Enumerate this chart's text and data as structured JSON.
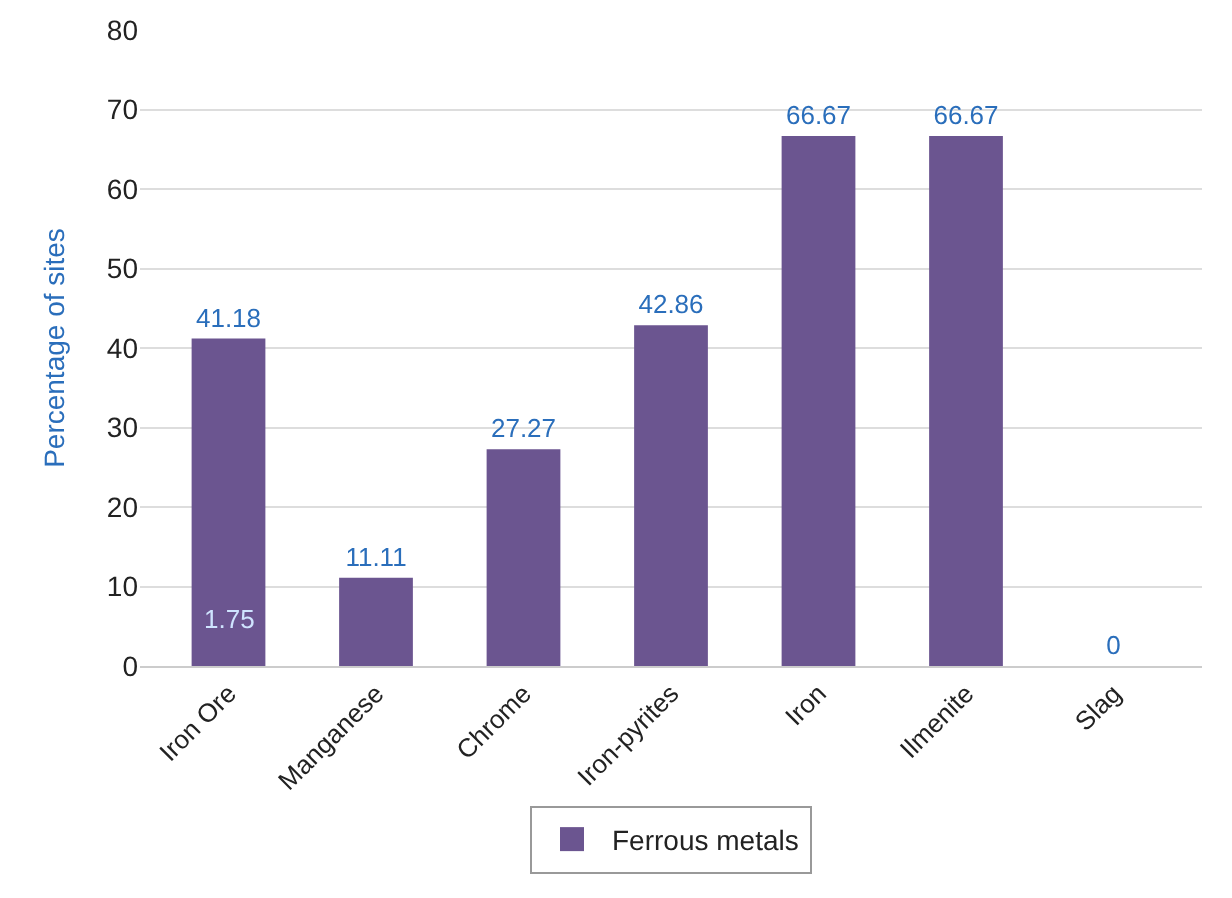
{
  "chart_data": {
    "type": "bar",
    "ylabel": "Percentage of sites",
    "categories": [
      "Iron Ore",
      "Manganese",
      "Chrome",
      "Iron-pyrites",
      "Iron",
      "Ilmenite",
      "Slag"
    ],
    "series": [
      {
        "name": "Ferrous metals",
        "color": "#6b5590",
        "values": [
          41.18,
          11.11,
          27.27,
          42.86,
          66.67,
          66.67,
          0
        ]
      }
    ],
    "ylim": [
      0,
      80
    ],
    "yticks": [
      0,
      10,
      20,
      30,
      40,
      50,
      60,
      70,
      80
    ],
    "grid": "y",
    "legend": "bottom",
    "data_labels": true,
    "annotations": [
      {
        "text": "1.75",
        "x": "Iron Ore",
        "y": 6
      }
    ]
  }
}
